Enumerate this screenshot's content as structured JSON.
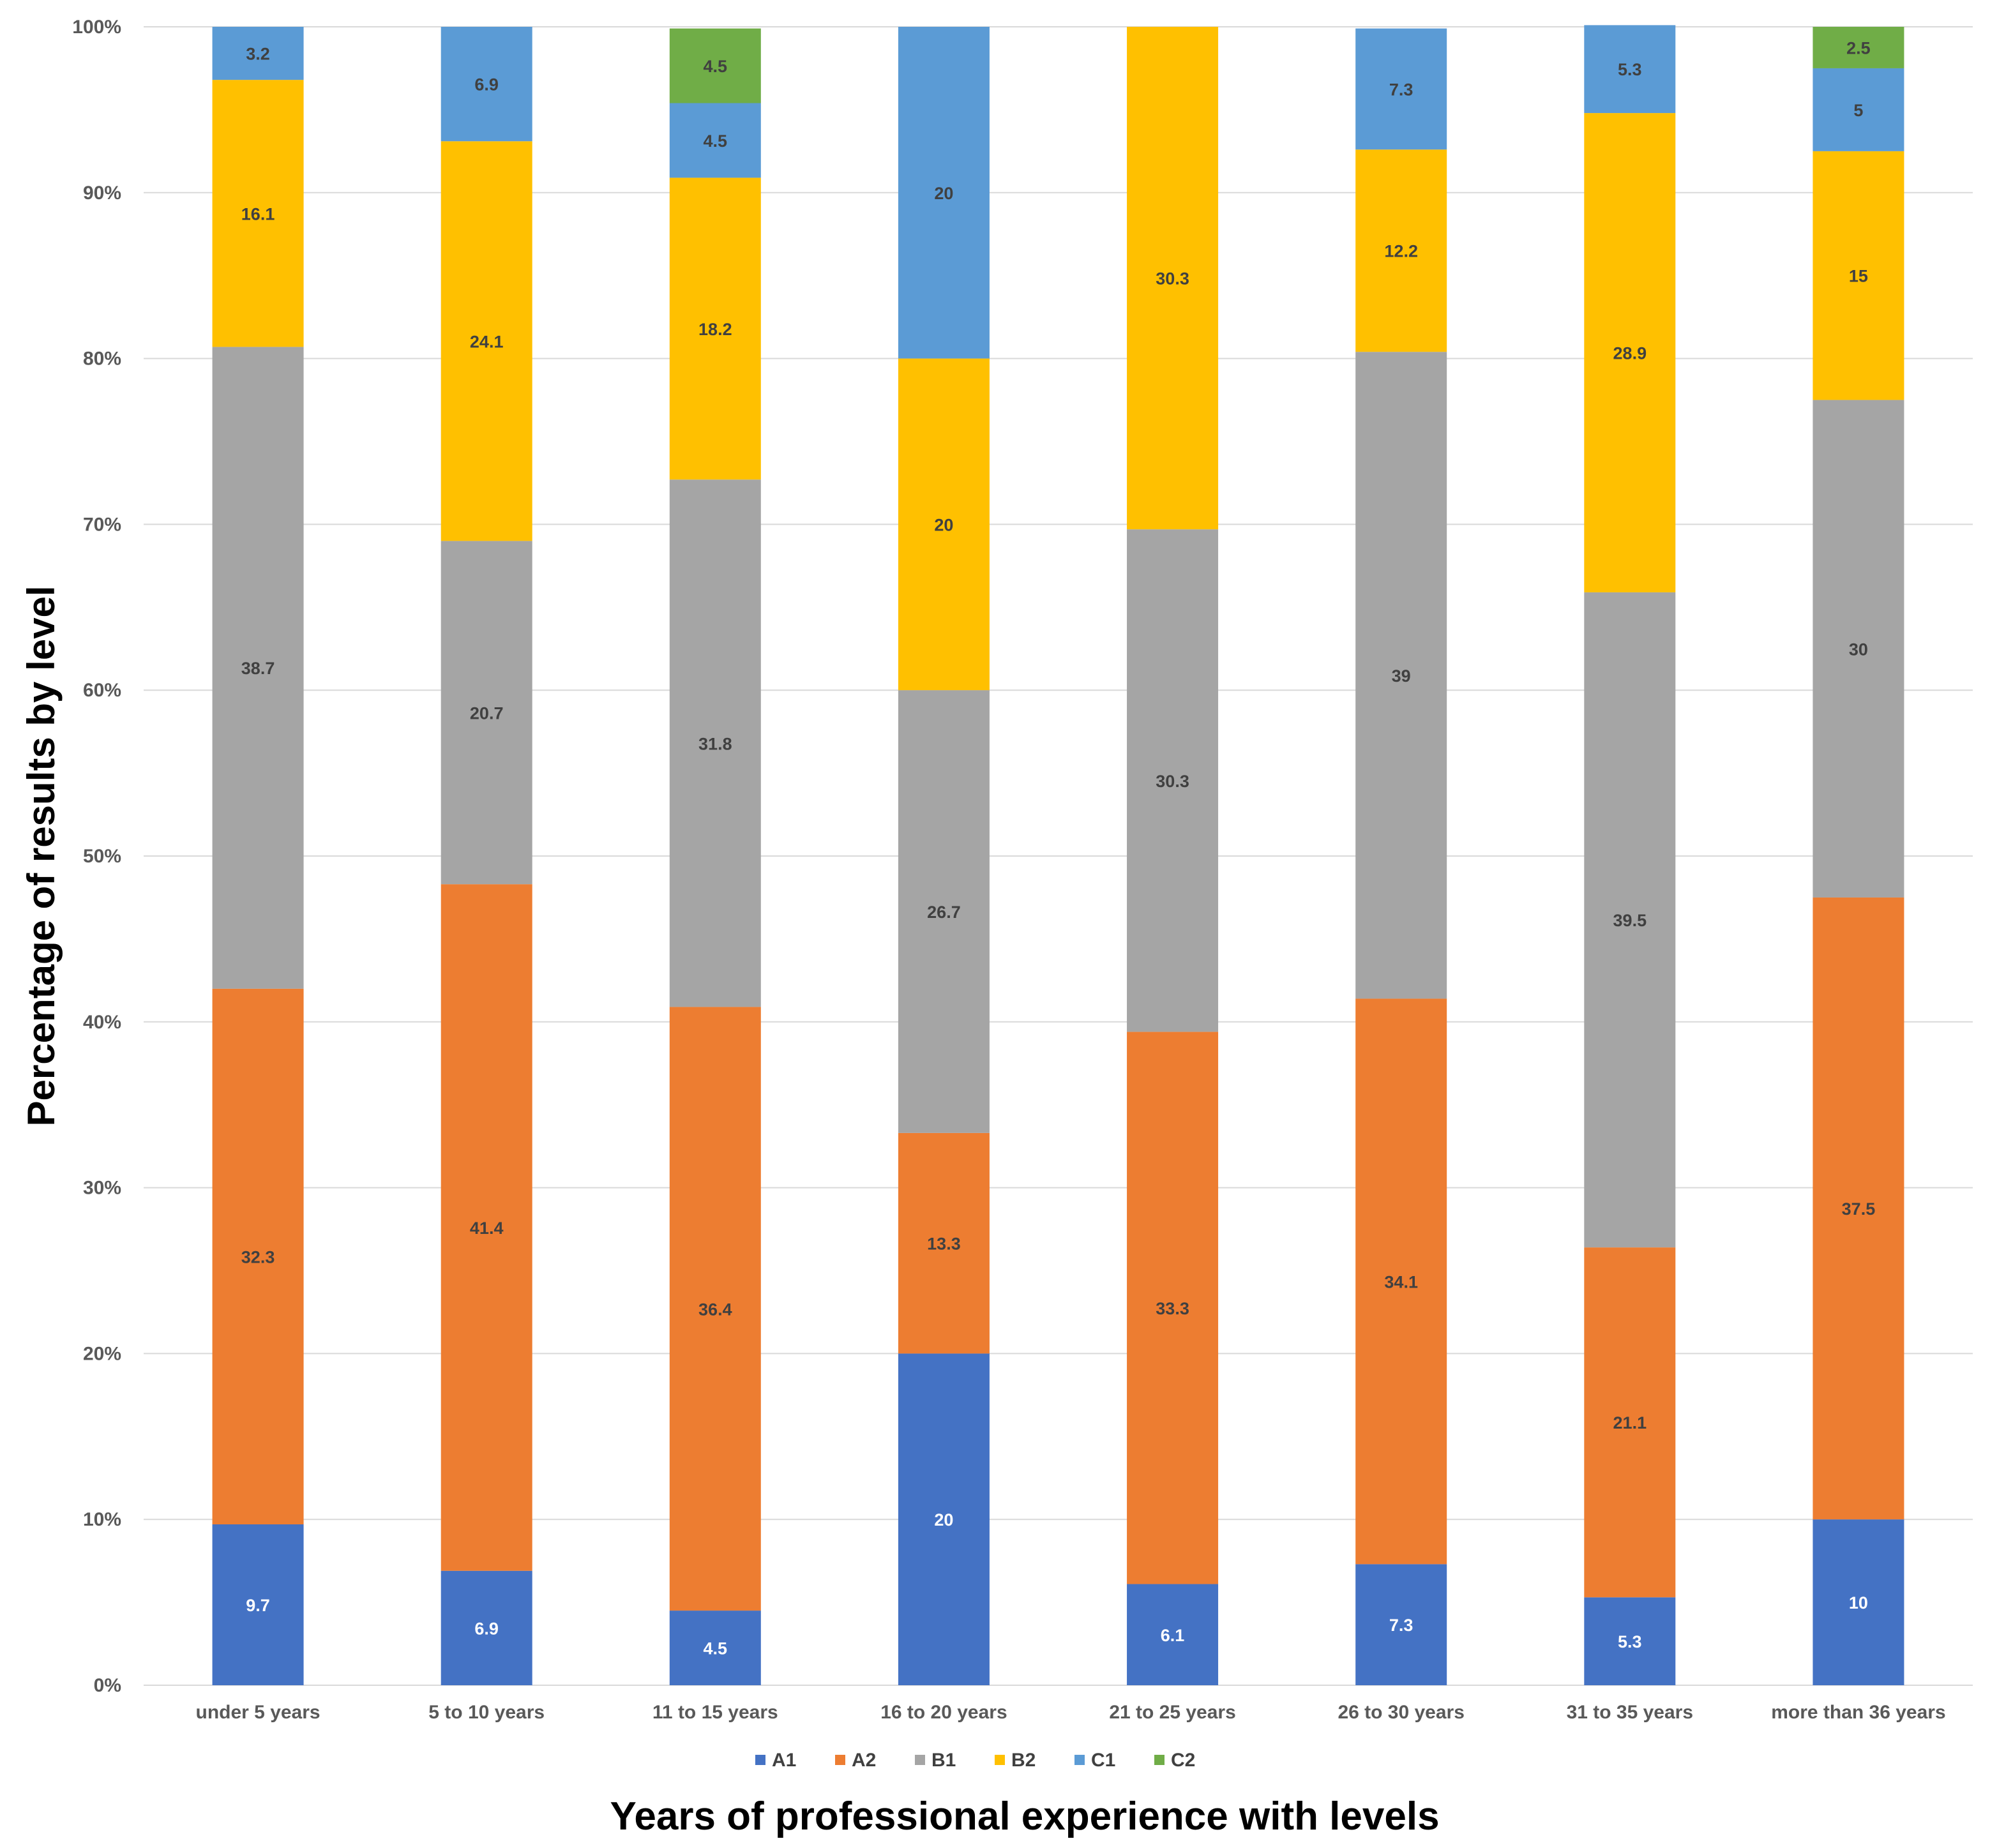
{
  "chart_data": {
    "type": "bar",
    "stacked": true,
    "percent": true,
    "title": "",
    "xlabel": "Years of professional experience with levels",
    "ylabel": "Percentage of results by level",
    "ylim": [
      0,
      100
    ],
    "yticks": [
      "0%",
      "10%",
      "20%",
      "30%",
      "40%",
      "50%",
      "60%",
      "70%",
      "80%",
      "90%",
      "100%"
    ],
    "grid": true,
    "legend_position": "bottom",
    "categories": [
      "under 5 years",
      "5 to 10 years",
      "11 to 15 years",
      "16 to 20 years",
      "21 to 25 years",
      "26 to 30 years",
      "31 to 35 years",
      "more than 36 years"
    ],
    "series": [
      {
        "name": "A1",
        "color": "#4472C4",
        "label_color": "#ffffff",
        "values": [
          9.7,
          6.9,
          4.5,
          20,
          6.1,
          7.3,
          5.3,
          10
        ]
      },
      {
        "name": "A2",
        "color": "#ED7D31",
        "label_color": "#404040",
        "values": [
          32.3,
          41.4,
          36.4,
          13.3,
          33.3,
          34.1,
          21.1,
          37.5
        ]
      },
      {
        "name": "B1",
        "color": "#A5A5A5",
        "label_color": "#404040",
        "values": [
          38.7,
          20.7,
          31.8,
          26.7,
          30.3,
          39,
          39.5,
          30
        ]
      },
      {
        "name": "B2",
        "color": "#FFC000",
        "label_color": "#404040",
        "values": [
          16.1,
          24.1,
          18.2,
          20,
          30.3,
          12.2,
          28.9,
          15
        ]
      },
      {
        "name": "C1",
        "color": "#5B9BD5",
        "label_color": "#404040",
        "values": [
          3.2,
          6.9,
          4.5,
          20,
          null,
          7.3,
          5.3,
          5
        ]
      },
      {
        "name": "C2",
        "color": "#70AD47",
        "label_color": "#404040",
        "values": [
          null,
          null,
          4.5,
          null,
          null,
          null,
          null,
          2.5
        ]
      }
    ]
  }
}
